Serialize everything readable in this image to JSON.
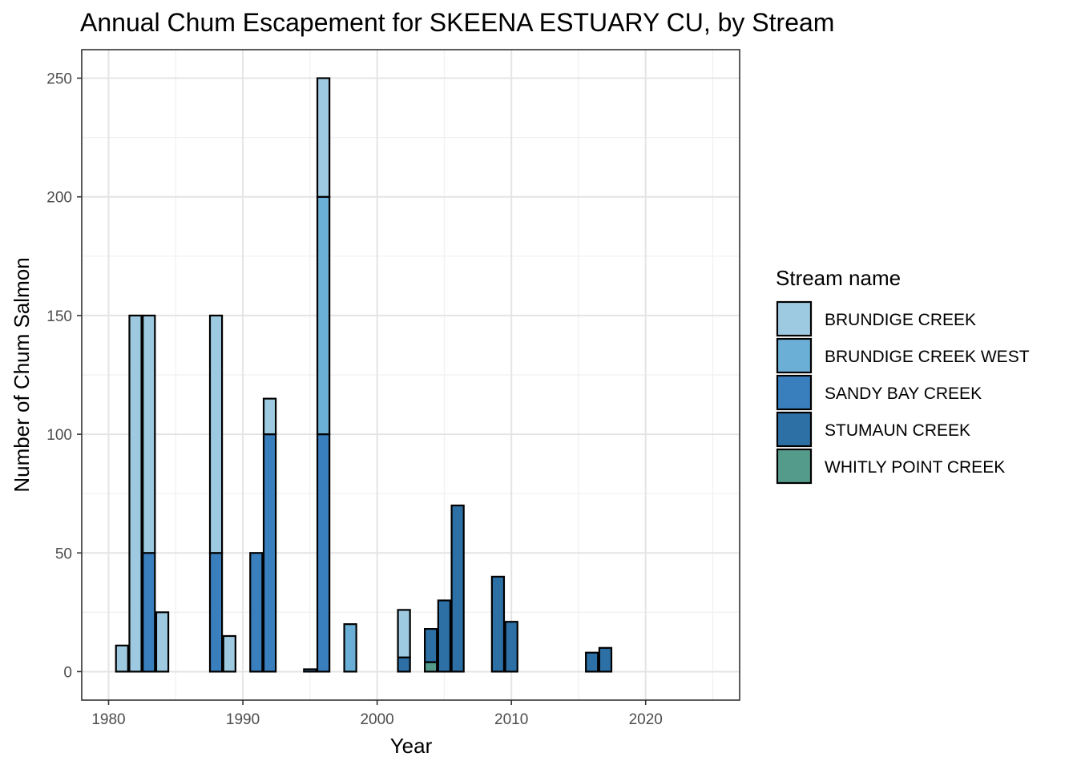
{
  "chart_data": {
    "type": "bar",
    "stacked": true,
    "title": "Annual Chum Escapement for SKEENA ESTUARY CU, by Stream",
    "xlabel": "Year",
    "ylabel": "Number of Chum Salmon",
    "xlim": [
      1978,
      2027
    ],
    "ylim": [
      -12,
      262
    ],
    "x_ticks": [
      1980,
      1990,
      2000,
      2010,
      2020
    ],
    "y_ticks": [
      0,
      50,
      100,
      150,
      200,
      250
    ],
    "grid": true,
    "legend": {
      "title": "Stream name",
      "position": "right"
    },
    "series": [
      {
        "name": "BRUNDIGE CREEK",
        "color": "#9ecae1",
        "points": [
          {
            "x": 1981,
            "y": 11
          },
          {
            "x": 1982,
            "y": 150
          },
          {
            "x": 1983,
            "y": 100
          },
          {
            "x": 1984,
            "y": 25
          },
          {
            "x": 1988,
            "y": 100
          },
          {
            "x": 1989,
            "y": 15
          },
          {
            "x": 1992,
            "y": 15
          },
          {
            "x": 1996,
            "y": 50
          },
          {
            "x": 2002,
            "y": 20
          }
        ]
      },
      {
        "name": "BRUNDIGE CREEK WEST",
        "color": "#6baed6",
        "points": [
          {
            "x": 1996,
            "y": 100
          },
          {
            "x": 1998,
            "y": 20
          }
        ]
      },
      {
        "name": "SANDY BAY CREEK",
        "color": "#3a7fbd",
        "points": [
          {
            "x": 1983,
            "y": 50
          },
          {
            "x": 1988,
            "y": 50
          },
          {
            "x": 1991,
            "y": 50
          },
          {
            "x": 1992,
            "y": 100
          },
          {
            "x": 1996,
            "y": 100
          }
        ]
      },
      {
        "name": "STUMAUN CREEK",
        "color": "#2d70a5",
        "points": [
          {
            "x": 1995,
            "y": 1
          },
          {
            "x": 2002,
            "y": 6
          },
          {
            "x": 2004,
            "y": 14
          },
          {
            "x": 2005,
            "y": 30
          },
          {
            "x": 2006,
            "y": 70
          },
          {
            "x": 2009,
            "y": 40
          },
          {
            "x": 2010,
            "y": 21
          },
          {
            "x": 2016,
            "y": 8
          },
          {
            "x": 2017,
            "y": 10
          }
        ]
      },
      {
        "name": "WHITLY POINT CREEK",
        "color": "#549b8b",
        "points": [
          {
            "x": 2004,
            "y": 4
          }
        ]
      }
    ]
  }
}
